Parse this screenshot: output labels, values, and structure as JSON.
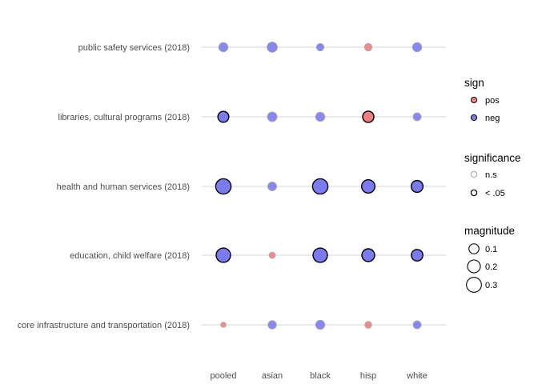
{
  "chart_data": {
    "type": "scatter",
    "title": "",
    "xlabel": "",
    "ylabel": "",
    "x_categories": [
      "pooled",
      "asian",
      "black",
      "hisp",
      "white"
    ],
    "y_categories": [
      "public safety services (2018)",
      "libraries, cultural programs (2018)",
      "health and human services (2018)",
      "education, child welfare (2018)",
      "core infrastructure and transportation (2018)"
    ],
    "grid": true,
    "legend_position": "right",
    "colors": {
      "pos": "#f08080",
      "neg": "#7b7bf0",
      "significant_stroke": "#000000",
      "ns_stroke": "#aaaaaa",
      "gridline": "#e3e3e3"
    },
    "points": [
      {
        "row": "public safety services (2018)",
        "col": "pooled",
        "sign": "neg",
        "significant": false,
        "magnitude": 0.08
      },
      {
        "row": "public safety services (2018)",
        "col": "asian",
        "sign": "neg",
        "significant": false,
        "magnitude": 0.11
      },
      {
        "row": "public safety services (2018)",
        "col": "black",
        "sign": "neg",
        "significant": false,
        "magnitude": 0.04
      },
      {
        "row": "public safety services (2018)",
        "col": "hisp",
        "sign": "pos",
        "significant": false,
        "magnitude": 0.04
      },
      {
        "row": "public safety services (2018)",
        "col": "white",
        "sign": "neg",
        "significant": false,
        "magnitude": 0.08
      },
      {
        "row": "libraries, cultural programs (2018)",
        "col": "pooled",
        "sign": "neg",
        "significant": true,
        "magnitude": 0.13
      },
      {
        "row": "libraries, cultural programs (2018)",
        "col": "asian",
        "sign": "neg",
        "significant": false,
        "magnitude": 0.09
      },
      {
        "row": "libraries, cultural programs (2018)",
        "col": "black",
        "sign": "neg",
        "significant": false,
        "magnitude": 0.08
      },
      {
        "row": "libraries, cultural programs (2018)",
        "col": "hisp",
        "sign": "pos",
        "significant": true,
        "magnitude": 0.14
      },
      {
        "row": "libraries, cultural programs (2018)",
        "col": "white",
        "sign": "neg",
        "significant": false,
        "magnitude": 0.05
      },
      {
        "row": "health and human services (2018)",
        "col": "pooled",
        "sign": "neg",
        "significant": true,
        "magnitude": 0.32
      },
      {
        "row": "health and human services (2018)",
        "col": "asian",
        "sign": "neg",
        "significant": false,
        "magnitude": 0.07
      },
      {
        "row": "health and human services (2018)",
        "col": "black",
        "sign": "neg",
        "significant": true,
        "magnitude": 0.32
      },
      {
        "row": "health and human services (2018)",
        "col": "hisp",
        "sign": "neg",
        "significant": true,
        "magnitude": 0.22
      },
      {
        "row": "health and human services (2018)",
        "col": "white",
        "sign": "neg",
        "significant": true,
        "magnitude": 0.16
      },
      {
        "row": "education, child welfare (2018)",
        "col": "pooled",
        "sign": "neg",
        "significant": true,
        "magnitude": 0.27
      },
      {
        "row": "education, child welfare (2018)",
        "col": "asian",
        "sign": "pos",
        "significant": false,
        "magnitude": 0.02
      },
      {
        "row": "education, child welfare (2018)",
        "col": "black",
        "sign": "neg",
        "significant": true,
        "magnitude": 0.27
      },
      {
        "row": "education, child welfare (2018)",
        "col": "hisp",
        "sign": "neg",
        "significant": true,
        "magnitude": 0.2
      },
      {
        "row": "education, child welfare (2018)",
        "col": "white",
        "sign": "neg",
        "significant": true,
        "magnitude": 0.15
      },
      {
        "row": "core infrastructure and transportation (2018)",
        "col": "pooled",
        "sign": "pos",
        "significant": false,
        "magnitude": 0.01
      },
      {
        "row": "core infrastructure and transportation (2018)",
        "col": "asian",
        "sign": "neg",
        "significant": false,
        "magnitude": 0.06
      },
      {
        "row": "core infrastructure and transportation (2018)",
        "col": "black",
        "sign": "neg",
        "significant": false,
        "magnitude": 0.08
      },
      {
        "row": "core infrastructure and transportation (2018)",
        "col": "hisp",
        "sign": "pos",
        "significant": false,
        "magnitude": 0.03
      },
      {
        "row": "core infrastructure and transportation (2018)",
        "col": "white",
        "sign": "neg",
        "significant": false,
        "magnitude": 0.05
      }
    ],
    "legends": {
      "sign": {
        "title": "sign",
        "items": [
          {
            "key": "pos",
            "label": "pos"
          },
          {
            "key": "neg",
            "label": "neg"
          }
        ]
      },
      "significance": {
        "title": "significance",
        "items": [
          {
            "key": "ns",
            "label": "n.s"
          },
          {
            "key": "sig",
            "label": "< .05"
          }
        ]
      },
      "magnitude": {
        "title": "magnitude",
        "items": [
          {
            "value": 0.1,
            "label": "0.1"
          },
          {
            "value": 0.2,
            "label": "0.2"
          },
          {
            "value": 0.3,
            "label": "0.3"
          }
        ]
      }
    }
  }
}
